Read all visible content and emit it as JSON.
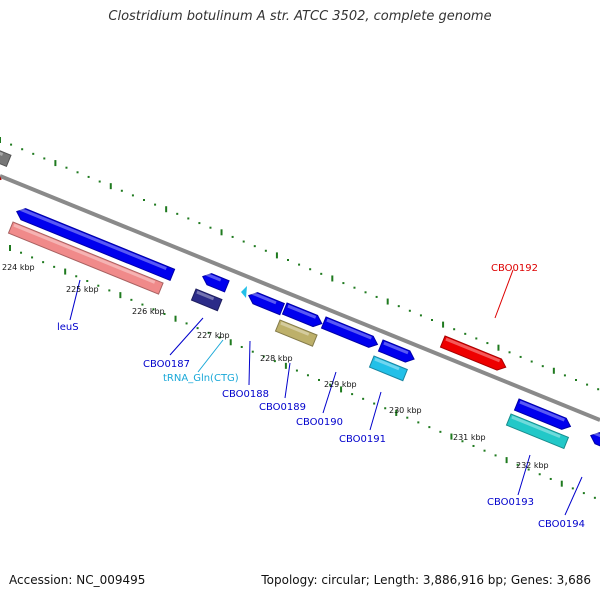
{
  "title": "Clostridium botulinum A str. ATCC 3502, complete genome",
  "footer": {
    "accession": "Accession: NC_009495",
    "summary": "Topology: circular; Length: 3,886,916 bp; Genes: 3,686"
  },
  "colors": {
    "backbone": "#8a8a8a",
    "tick": "#1f7a1f",
    "gene_blue": "#0000ee",
    "gene_pink": "#f08a8a",
    "gene_red": "#ee0000",
    "gene_cyan": "#22c0e8",
    "gene_teal": "#22c8c8",
    "gene_navy": "#2c2c88",
    "gene_olive": "#bdb06a",
    "gene_gray": "#777777",
    "label_blue": "#0000cc",
    "label_red": "#dd0000",
    "label_cyan": "#19a8d8"
  },
  "kbp_labels": [
    "224 kbp",
    "225 kbp",
    "226 kbp",
    "227 kbp",
    "228 kbp",
    "229 kbp",
    "230 kbp",
    "231 kbp",
    "232 kbp"
  ],
  "gene_labels": [
    "leuS",
    "CBO0187",
    "tRNA_Gln(CTG)",
    "CBO0188",
    "CBO0189",
    "CBO0190",
    "CBO0191",
    "CBO0192",
    "CBO0193",
    "CBO0194"
  ]
}
